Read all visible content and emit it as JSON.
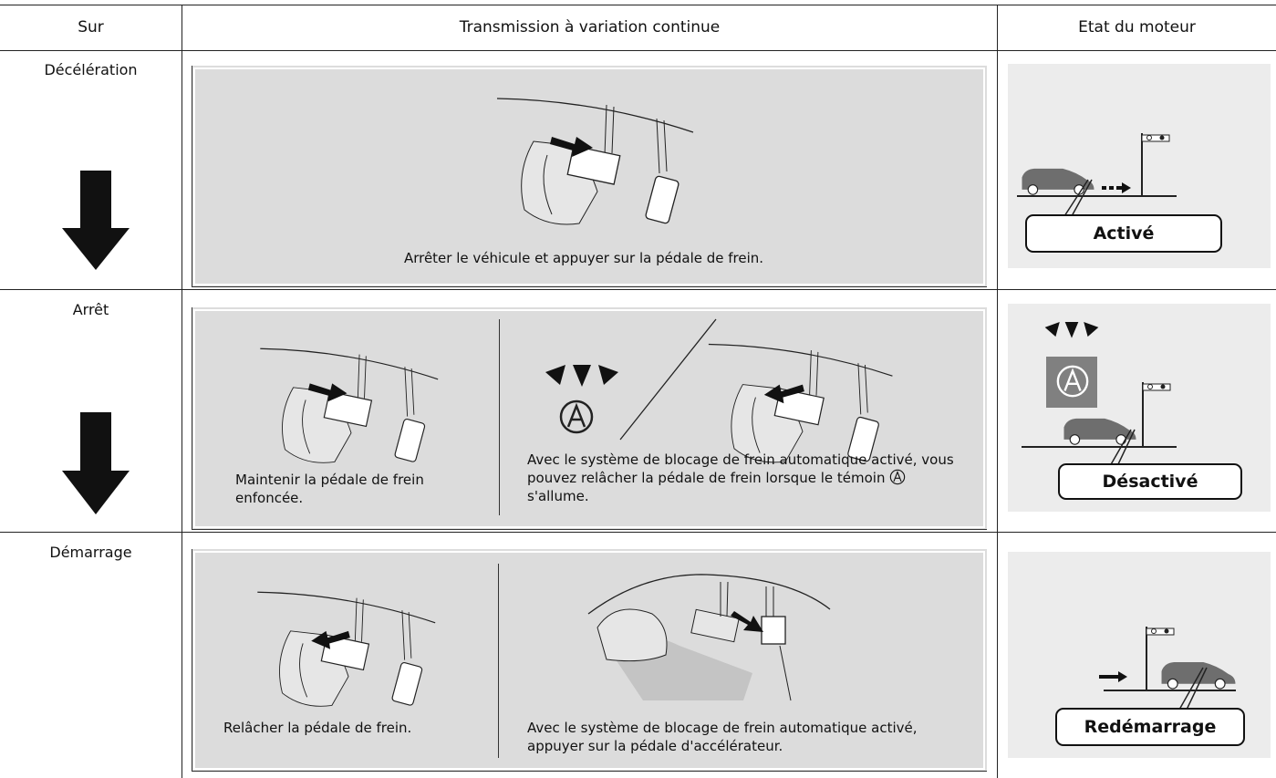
{
  "header": {
    "columns": [
      "Sur",
      "Transmission à variation continue",
      "Etat du moteur"
    ]
  },
  "rows": [
    {
      "label": "Décélération",
      "panels": [
        "Arrêter le véhicule et appuyer sur la pédale de frein."
      ],
      "state": "Activé"
    },
    {
      "label": "Arrêt",
      "panels": [
        "Maintenir la pédale de frein enfoncée.",
        "Avec le système de blocage de frein automatique activé, vous pouvez relâcher la pédale de frein lorsque le témoin",
        "s'allume."
      ],
      "state": "Désactivé"
    },
    {
      "label": "Démarrage",
      "panels": [
        "Relâcher la pédale de frein.",
        "Avec le système de blocage de frein automatique activé, appuyer sur la pédale d'accélérateur."
      ],
      "state": "Redémarrage"
    }
  ]
}
